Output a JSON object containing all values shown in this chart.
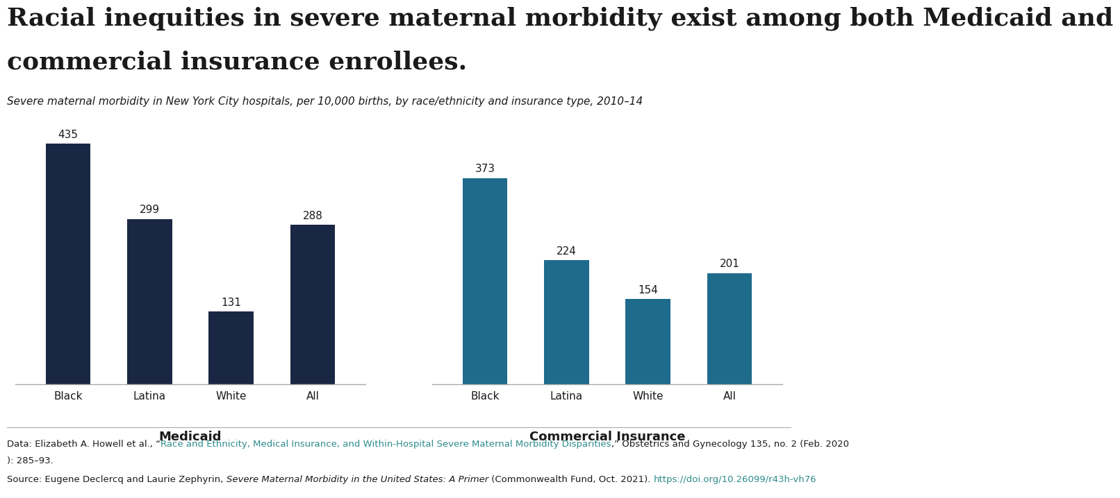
{
  "title_line1": "Racial inequities in severe maternal morbidity exist among both Medicaid and",
  "title_line2": "commercial insurance enrollees.",
  "subtitle": "Severe maternal morbidity in New York City hospitals, per 10,000 births, by race/ethnicity and insurance type, 2010–14",
  "medicaid_label": "Medicaid",
  "commercial_label": "Commercial Insurance",
  "categories": [
    "Black",
    "Latina",
    "White",
    "All"
  ],
  "medicaid_values": [
    435,
    299,
    131,
    288
  ],
  "commercial_values": [
    373,
    224,
    154,
    201
  ],
  "medicaid_color": "#1a2744",
  "commercial_color": "#1e6b8c",
  "background_color": "#ffffff",
  "bar_width": 0.55,
  "ylim": [
    0,
    480
  ],
  "footnote_data_pre": "Data: Elizabeth A. Howell et al., “",
  "footnote_data_link": "Race and Ethnicity, Medical Insurance, and Within-Hospital Severe Maternal Morbidity Disparities",
  "footnote_data_post": ",” Obstetrics and Gynecology 135, no. 2 (Feb. 2020): 285–93.",
  "footnote_source_pre": "Source: Eugene Declercq and Laurie Zephyrin, ",
  "footnote_source_italic": "Severe Maternal Morbidity in the United States: A Primer",
  "footnote_source_mid": " (Commonwealth Fund, Oct. 2021). ",
  "footnote_source_link": "https://doi.org/10.26099/r43h-vh76",
  "link_color": "#2e8b8b",
  "text_color": "#1a1a1a",
  "axis_line_color": "#aaaaaa",
  "title_fontsize": 26,
  "subtitle_fontsize": 11,
  "label_fontsize": 11,
  "value_fontsize": 11,
  "group_label_fontsize": 13,
  "footnote_fontsize": 9.5
}
